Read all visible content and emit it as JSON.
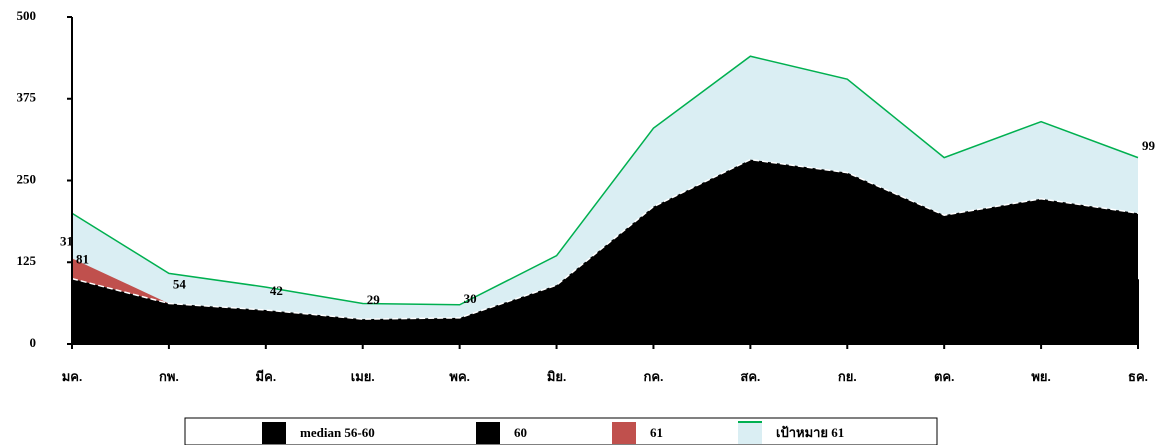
{
  "chart_data": {
    "type": "area",
    "categories": [
      "มค.",
      "กพ.",
      "มีค.",
      "เมย.",
      "พค.",
      "มิย.",
      "กค.",
      "สค.",
      "กย.",
      "ตค.",
      "พย.",
      "ธค."
    ],
    "ylim": [
      0,
      500
    ],
    "yticks": [
      0,
      125,
      250,
      375,
      500
    ],
    "series": [
      {
        "name": "median 56-60",
        "color": "#000000",
        "values": [
          100,
          62,
          52,
          38,
          40,
          90,
          210,
          282,
          262,
          197,
          222,
          200
        ]
      },
      {
        "name": "60",
        "color": "#000000",
        "values": [
          81,
          54,
          42,
          29,
          30,
          null,
          null,
          null,
          null,
          null,
          null,
          99
        ]
      },
      {
        "name": "61",
        "color": "#c0504d",
        "values": [
          31,
          0,
          null,
          null,
          null,
          null,
          null,
          null,
          null,
          null,
          null,
          null
        ]
      },
      {
        "name": "เป้าหมาย 61",
        "color": "#00b050",
        "values": [
          200,
          108,
          87,
          62,
          60,
          135,
          330,
          440,
          405,
          285,
          340,
          285
        ]
      }
    ]
  }
}
